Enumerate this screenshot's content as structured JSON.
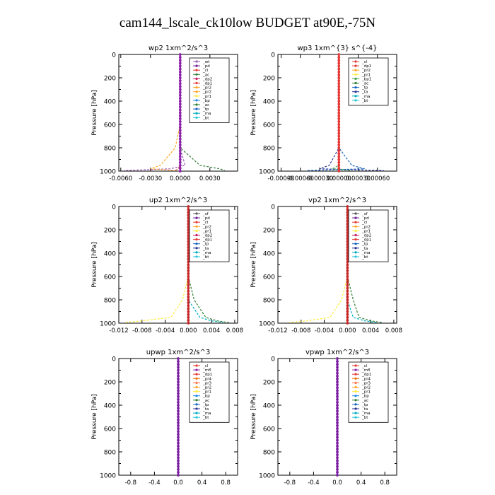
{
  "title": "cam144_lscale_ck10low  BUDGET at90E,-75N",
  "colors": {
    "_wt": "#9b59b6",
    "_pd": "#6a1b9a",
    "_cl": "#e53935",
    "_ac": "#2e7d32",
    "_dp2": "#c2185b",
    "_dp1": "#e53935",
    "_pr2": "#ffa726",
    "_pr1": "#ffeb3b",
    "_pr3": "#ff7043",
    "_pr4": "#ef6c00",
    "_bp": "#1e88e5",
    "_bp1": "#43a047",
    "_tp": "#1565c0",
    "_ta": "#283593",
    "_ma": "#00acc1",
    "_bt": "#26c6da",
    "_mfl": "#8e24aa"
  },
  "chart_data": [
    {
      "type": "line",
      "name": "wp2",
      "title": "wp2  1xm^2/s^3",
      "ylabel": "Pressure [hPa]",
      "ylim": [
        1000,
        0
      ],
      "xlim": [
        -0.0062,
        0.0058
      ],
      "x_ticks": [
        -0.006,
        -0.003,
        0.0,
        0.003
      ],
      "x_tick_labels": [
        "-0.0060",
        "-0.0030",
        "0.0000",
        "0.0030"
      ],
      "y_ticks": [
        0,
        200,
        400,
        600,
        800,
        1000
      ],
      "y_tick_labels": [
        "0",
        "200",
        "400",
        "600",
        "800",
        "1000"
      ],
      "legend": [
        "_wt",
        "_pd",
        "_cl",
        "_ac",
        "_dp2",
        "_dp1",
        "_pr2",
        "_pr2",
        "_pr1",
        "_bp",
        "_ac",
        "_tp",
        "_ma",
        "_bt"
      ],
      "profile_color": "#8e24aa",
      "near_surface": [
        {
          "name": "_wt",
          "values": [
            0.0,
            0.0,
            0.0005,
            -0.001,
            -0.0057
          ]
        },
        {
          "name": "_ac",
          "values": [
            0.0,
            0.0,
            0.002,
            0.004,
            0.0045
          ]
        },
        {
          "name": "_pr2",
          "values": [
            0.0,
            -0.0005,
            -0.002,
            -0.003,
            -0.0005
          ]
        },
        {
          "name": "_dp1",
          "values": [
            0.0,
            0.0,
            0.0,
            -0.0002,
            -0.0005
          ]
        }
      ]
    },
    {
      "type": "line",
      "name": "wp3",
      "title": "wp3  1xm^{3} s^{-4}",
      "ylabel": "Pressure [hPa]",
      "ylim": [
        1000,
        0
      ],
      "xlim": [
        -0.00095,
        0.0009
      ],
      "x_ticks": [
        -0.0009,
        -0.0006,
        -0.0003,
        0.0,
        0.0003,
        0.0006
      ],
      "x_tick_labels": [
        "-0.00090",
        "-0.00060",
        "-0.00030",
        "0.00000",
        "0.00030",
        "0.00060"
      ],
      "y_ticks": [
        0,
        200,
        400,
        600,
        800,
        1000
      ],
      "y_tick_labels": [
        "0",
        "200",
        "400",
        "600",
        "800",
        "1000"
      ],
      "legend": [
        "_cl",
        "_dp1",
        "_pr2",
        "_pr1",
        "_bp1",
        "_ac",
        "_tp",
        "_ta",
        "_ma",
        "_bt"
      ],
      "profile_color": "#e53935",
      "near_surface": [
        {
          "name": "_ta",
          "values": [
            0.0,
            0.0,
            -0.00015,
            -0.0003,
            0.0007
          ]
        },
        {
          "name": "_tp",
          "values": [
            0.0,
            0.0,
            0.0002,
            0.0004,
            -0.0005
          ]
        },
        {
          "name": "_bp1",
          "values": [
            0.0,
            0.0,
            0.0,
            -0.0001,
            0.0002
          ]
        }
      ]
    },
    {
      "type": "line",
      "name": "up2",
      "title": "up2  1xm^2/s^3",
      "ylabel": "Pressure [hPa]",
      "ylim": [
        1000,
        0
      ],
      "xlim": [
        -0.012,
        0.0085
      ],
      "x_ticks": [
        -0.012,
        -0.008,
        -0.004,
        0.0,
        0.004,
        0.008
      ],
      "x_tick_labels": [
        "-0.012",
        "-0.008",
        "-0.004",
        "0.000",
        "0.004",
        "0.008"
      ],
      "y_ticks": [
        0,
        200,
        400,
        600,
        800,
        1000
      ],
      "y_tick_labels": [
        "0",
        "200",
        "400",
        "600",
        "800",
        "1000"
      ],
      "legend": [
        "_sf",
        "_pd",
        "_cl",
        "_pr2",
        "_pr1",
        "_dp2",
        "_dp1",
        "_tp",
        "_ta",
        "_ma",
        "_bt"
      ],
      "profile_color": "#c62828",
      "near_surface": [
        {
          "name": "_pr1",
          "values": [
            0.0,
            -0.001,
            -0.003,
            -0.008,
            -0.011
          ]
        },
        {
          "name": "_ac",
          "values": [
            0.0,
            0.001,
            0.003,
            0.005,
            0.007
          ]
        },
        {
          "name": "_ma",
          "values": [
            0.0,
            0.0,
            0.002,
            0.004,
            0.006
          ]
        }
      ]
    },
    {
      "type": "line",
      "name": "vp2",
      "title": "vp2  1xm^2/s^3",
      "ylabel": "Pressure [hPa]",
      "ylim": [
        1000,
        0
      ],
      "xlim": [
        -0.012,
        0.0085
      ],
      "x_ticks": [
        -0.012,
        -0.008,
        -0.004,
        0.0,
        0.004,
        0.008
      ],
      "x_tick_labels": [
        "-0.012",
        "-0.008",
        "-0.004",
        "0.000",
        "0.004",
        "0.008"
      ],
      "y_ticks": [
        0,
        200,
        400,
        600,
        800,
        1000
      ],
      "y_tick_labels": [
        "0",
        "200",
        "400",
        "600",
        "800",
        "1000"
      ],
      "legend": [
        "_sf",
        "_pd",
        "_cl",
        "_pr2",
        "_pr1",
        "_dp2",
        "_dp1",
        "_tp",
        "_ta",
        "_ma",
        "_bt"
      ],
      "profile_color": "#c62828",
      "near_surface": [
        {
          "name": "_pr1",
          "values": [
            0.0,
            -0.001,
            -0.003,
            -0.007,
            -0.01
          ]
        },
        {
          "name": "_ac",
          "values": [
            0.0,
            0.001,
            0.002,
            0.004,
            0.006
          ]
        },
        {
          "name": "_ma",
          "values": [
            0.0,
            0.0,
            0.001,
            0.003,
            0.005
          ]
        }
      ]
    },
    {
      "type": "line",
      "name": "upwp",
      "title": "upwp  1xm^2/s^3",
      "ylabel": "Pressure [hPa]",
      "ylim": [
        1000,
        0
      ],
      "xlim": [
        -1.0,
        1.0
      ],
      "x_ticks": [
        -0.8,
        -0.4,
        0.0,
        0.4,
        0.8
      ],
      "x_tick_labels": [
        "-0.8",
        "-0.4",
        "0.0",
        "0.4",
        "0.8"
      ],
      "y_ticks": [
        0,
        200,
        400,
        600,
        800,
        1000
      ],
      "y_tick_labels": [
        "0",
        "200",
        "400",
        "600",
        "800",
        "1000"
      ],
      "legend": [
        "_cl",
        "_mfl",
        "_dp1",
        "_pr4",
        "_pr3",
        "_pr2",
        "_pr1",
        "_bp",
        "_ac",
        "_tp",
        "_ta",
        "_ma",
        "_bt"
      ],
      "profile_color": "#7b1fa2",
      "near_surface": []
    },
    {
      "type": "line",
      "name": "vpwp",
      "title": "vpwp  1xm^2/s^3",
      "ylabel": "Pressure [hPa]",
      "ylim": [
        1000,
        0
      ],
      "xlim": [
        -1.0,
        1.0
      ],
      "x_ticks": [
        -0.8,
        -0.4,
        0.0,
        0.4,
        0.8
      ],
      "x_tick_labels": [
        "-0.8",
        "-0.4",
        "0.0",
        "0.4",
        "0.8"
      ],
      "y_ticks": [
        0,
        200,
        400,
        600,
        800,
        1000
      ],
      "y_tick_labels": [
        "0",
        "200",
        "400",
        "600",
        "800",
        "1000"
      ],
      "legend": [
        "_cl",
        "_mfl",
        "_dp1",
        "_pr4",
        "_pr3",
        "_pr2",
        "_pr1",
        "_bp",
        "_ac",
        "_tp",
        "_ta",
        "_ma",
        "_bt"
      ],
      "profile_color": "#7b1fa2",
      "near_surface": []
    }
  ]
}
